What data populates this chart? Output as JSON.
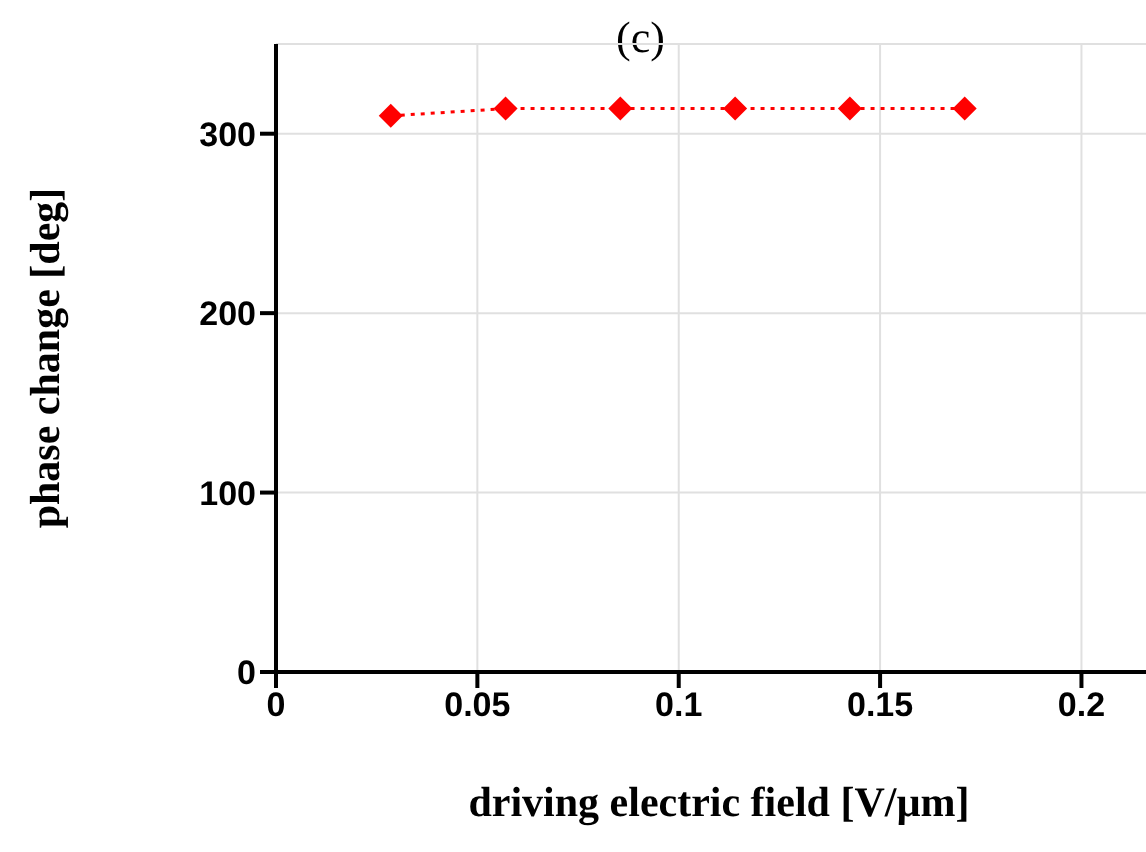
{
  "chart_data": {
    "type": "line",
    "title": "(c)",
    "xlabel": "driving electric field [V/µm]",
    "ylabel": "phase change [deg]",
    "x": [
      0.0285,
      0.057,
      0.0855,
      0.114,
      0.1425,
      0.171
    ],
    "series": [
      {
        "color": "#ff0000",
        "values": [
          310,
          314,
          314,
          314,
          314,
          314
        ]
      }
    ],
    "xlim": [
      0,
      0.22
    ],
    "xticks": [
      0,
      0.05,
      0.1,
      0.15,
      0.2
    ],
    "ylim": [
      0,
      350
    ],
    "yticks": [
      0,
      100,
      200,
      300
    ],
    "grid": true,
    "marker": "diamond",
    "line_style": "dotted"
  }
}
